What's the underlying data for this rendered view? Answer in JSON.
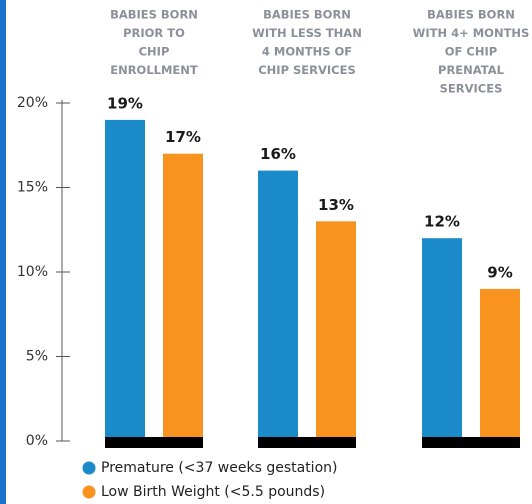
{
  "chart_data": {
    "type": "bar",
    "categories": [
      [
        "BABIES BORN",
        "PRIOR TO",
        "CHIP",
        "ENROLLMENT"
      ],
      [
        "BABIES BORN",
        "WITH LESS THAN",
        "4 MONTHS OF",
        "CHIP SERVICES"
      ],
      [
        "BABIES BORN",
        "WITH 4+ MONTHS",
        "OF CHIP",
        "PRENATAL",
        "SERVICES"
      ]
    ],
    "series": [
      {
        "name": "Premature (<37 weeks gestation)",
        "color": "#1a8bc8",
        "values": [
          19,
          16,
          12
        ],
        "value_labels": [
          "19%",
          "16%",
          "12%"
        ]
      },
      {
        "name": "Low Birth Weight (<5.5 pounds)",
        "color": "#f7931e",
        "values": [
          17,
          13,
          9
        ],
        "value_labels": [
          "17%",
          "13%",
          "9%"
        ]
      }
    ],
    "ylim": [
      0,
      20
    ],
    "yticks": [
      {
        "value": 0,
        "label": "0%"
      },
      {
        "value": 5,
        "label": "5%"
      },
      {
        "value": 10,
        "label": "10%"
      },
      {
        "value": 15,
        "label": "15%"
      },
      {
        "value": 20,
        "label": "20%"
      }
    ],
    "legend": "bottom-left"
  }
}
